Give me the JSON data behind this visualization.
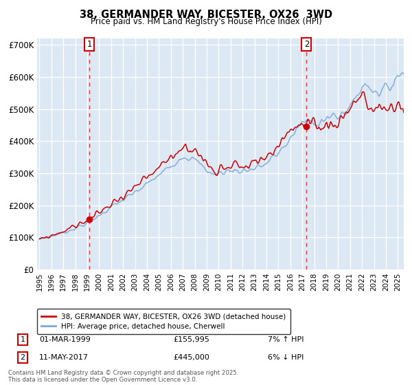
{
  "title": "38, GERMANDER WAY, BICESTER, OX26  3WD",
  "subtitle": "Price paid vs. HM Land Registry's House Price Index (HPI)",
  "ylim": [
    0,
    720000
  ],
  "yticks": [
    0,
    100000,
    200000,
    300000,
    400000,
    500000,
    600000,
    700000
  ],
  "ytick_labels": [
    "£0",
    "£100K",
    "£200K",
    "£300K",
    "£400K",
    "£500K",
    "£600K",
    "£700K"
  ],
  "bg_color": "#dce9f5",
  "red_line_color": "#cc0000",
  "blue_line_color": "#7ba7d4",
  "marker_color": "#cc0000",
  "dashed_line_color": "#ee3333",
  "legend_label_red": "38, GERMANDER WAY, BICESTER, OX26 3WD (detached house)",
  "legend_label_blue": "HPI: Average price, detached house, Cherwell",
  "annotation1_date_str": "01-MAR-1999",
  "annotation1_price_str": "£155,995",
  "annotation1_hpi_str": "7% ↑ HPI",
  "annotation2_date_str": "11-MAY-2017",
  "annotation2_price_str": "£445,000",
  "annotation2_hpi_str": "6% ↓ HPI",
  "footer": "Contains HM Land Registry data © Crown copyright and database right 2025.\nThis data is licensed under the Open Government Licence v3.0.",
  "sale1_year": 1999.17,
  "sale1_value": 155995,
  "sale2_year": 2017.36,
  "sale2_value": 445000,
  "xmin": 1994.8,
  "xmax": 2025.5,
  "xticks": [
    1995,
    1996,
    1997,
    1998,
    1999,
    2000,
    2001,
    2002,
    2003,
    2004,
    2005,
    2006,
    2007,
    2008,
    2009,
    2010,
    2011,
    2012,
    2013,
    2014,
    2015,
    2016,
    2017,
    2018,
    2019,
    2020,
    2021,
    2022,
    2023,
    2024,
    2025
  ]
}
